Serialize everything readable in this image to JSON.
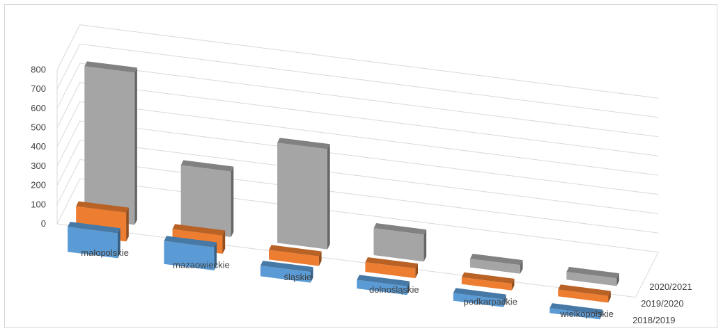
{
  "chart_data": {
    "type": "bar",
    "subtype": "3d-column",
    "title": "",
    "xlabel": "",
    "ylabel": "",
    "categories": [
      "małopolskie",
      "mazaowieckie",
      "śląskie",
      "dolnośląskie",
      "podkarpackie",
      "wielkopolskie"
    ],
    "series": [
      {
        "name": "2018/2019",
        "color": "#5b9bd5",
        "values": [
          130,
          120,
          55,
          45,
          40,
          25
        ]
      },
      {
        "name": "2019/2020",
        "color": "#ed7d31",
        "values": [
          150,
          95,
          50,
          50,
          35,
          35
        ]
      },
      {
        "name": "2020/2021",
        "color": "#a5a5a5",
        "values": [
          790,
          340,
          520,
          140,
          45,
          40
        ]
      }
    ],
    "ylim": [
      0,
      800
    ],
    "yticks": [
      "0",
      "100",
      "200",
      "300",
      "400",
      "500",
      "600",
      "700",
      "800"
    ],
    "grid": true,
    "legend": "none"
  }
}
